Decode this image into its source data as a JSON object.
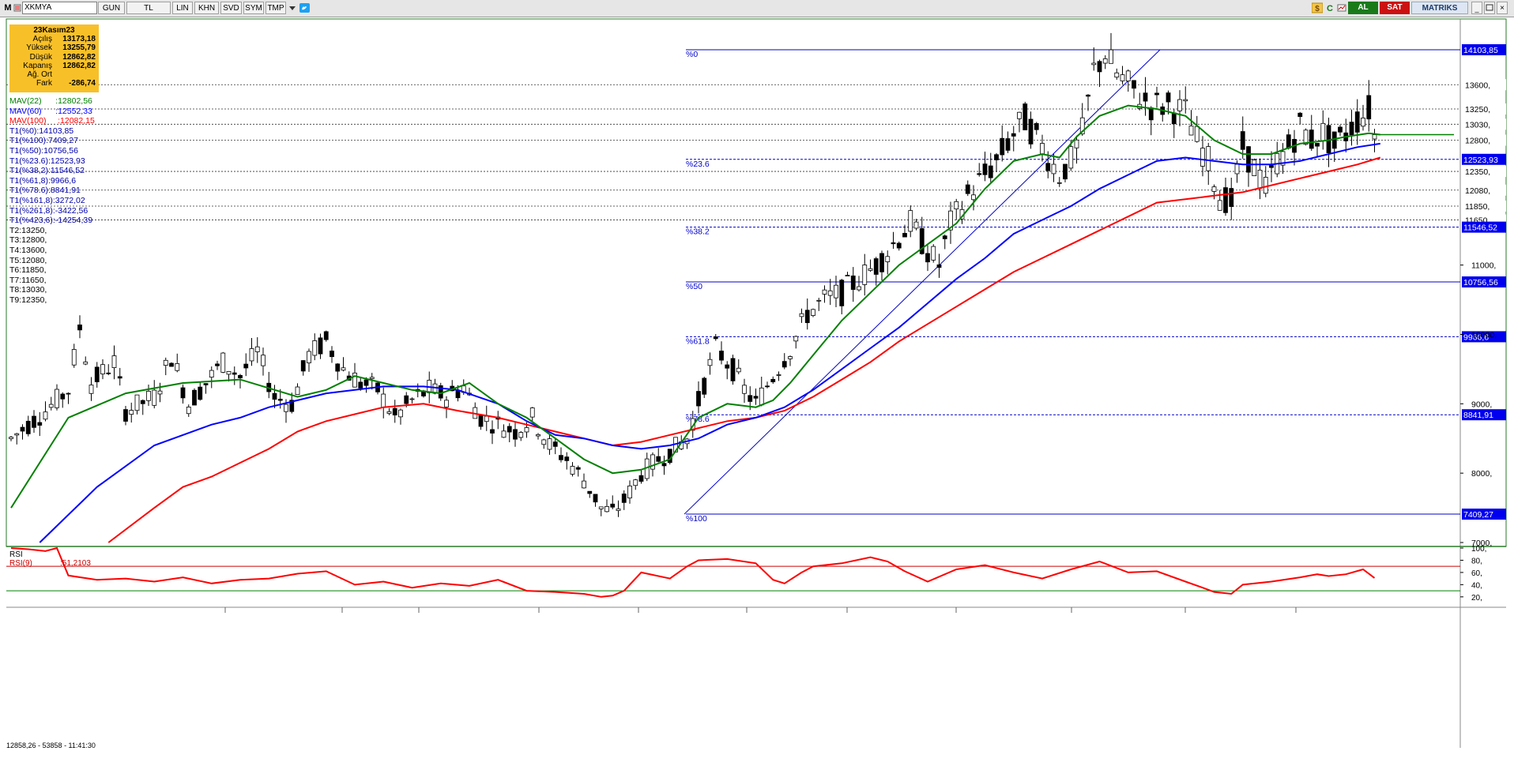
{
  "toolbar": {
    "m_label": "M",
    "symbol": "XKMYA",
    "buttons": [
      "GUN",
      "TL",
      "LIN",
      "KHN",
      "SVD",
      "SYM",
      "TMP"
    ],
    "al_label": "AL",
    "sat_label": "SAT",
    "brand": "MATRIKS"
  },
  "colors": {
    "mav22": "#008000",
    "mav60": "#0000ff",
    "mav100": "#ff0000",
    "fib": "#0000cc",
    "rsi": "#ff0000",
    "al_bg": "#1a7a1a",
    "sat_bg": "#cc1111",
    "info_bg": "#f8c028"
  },
  "info_box": {
    "date": "23Kasım23",
    "rows": [
      {
        "label": "Açılış",
        "value": "13173,18"
      },
      {
        "label": "Yüksek",
        "value": "13255,79"
      },
      {
        "label": "Düşük",
        "value": "12862,82"
      },
      {
        "label": "Kapanış",
        "value": "12862,82"
      },
      {
        "label": "Ağ. Ort",
        "value": ""
      },
      {
        "label": "Fark",
        "value": "-286,74"
      }
    ]
  },
  "indicators": {
    "mav22": {
      "label": "MAV(22)",
      "value": ":12802,56"
    },
    "mav60": {
      "label": "MAV(60)",
      "value": ":12552,33"
    },
    "mav100": {
      "label": "MAV(100)",
      "value": ":12082,15"
    }
  },
  "fib_lines": [
    "T1(%0):14103,85",
    "T1(%100):7409,27",
    "T1(%50):10756,56",
    "T1(%23.6):12523,93",
    "T1(%38,2):11546,52",
    "T1(%61,8):9966,6",
    "T1(%78.6):8841,91",
    "T1(%161,8):3272,02",
    "T1(%261,8):-3422,56",
    "T1(%423,6):-14254,39"
  ],
  "target_lines": [
    "T2:13250,",
    "T3:12800,",
    "T4:13600,",
    "T5:12080,",
    "T6:11850,",
    "T7:11650,",
    "T8:13030,",
    "T9:12350,"
  ],
  "status_text": "12858,26 - 53858 - 11:41:30",
  "chart_data": {
    "type": "candlestick",
    "y_axis_ticks": [
      7000,
      8000,
      9000,
      10000,
      11000
    ],
    "y_axis_tick_labels": [
      "7000,",
      "8000,",
      "9000,",
      "10000,",
      "11000,"
    ],
    "fib_levels": [
      {
        "label": "%0",
        "value": 14103.85,
        "axis_label": "14103,85"
      },
      {
        "label": "%23.6",
        "value": 12523.93,
        "axis_label": "12523,93"
      },
      {
        "label": "%38.2",
        "value": 11546.52,
        "axis_label": "11546,52"
      },
      {
        "label": "%50",
        "value": 10756.56,
        "axis_label": "10756,56"
      },
      {
        "label": "%61.8",
        "value": 9966.6,
        "axis_label": "9966,6"
      },
      {
        "label": "%78.6",
        "value": 8841.91,
        "axis_label": "8841,91"
      },
      {
        "label": "%100",
        "value": 7409.27,
        "axis_label": "7409,27"
      }
    ],
    "target_levels": [
      {
        "value": 13600,
        "axis_label": "13600,"
      },
      {
        "value": 13250,
        "axis_label": "13250,"
      },
      {
        "value": 13030,
        "axis_label": "13030,"
      },
      {
        "value": 12800,
        "axis_label": "12800,"
      },
      {
        "value": 12350,
        "axis_label": "12350,"
      },
      {
        "value": 12080,
        "axis_label": "12080,"
      },
      {
        "value": 11850,
        "axis_label": "11850,"
      },
      {
        "value": 11650,
        "axis_label": "11650,"
      }
    ],
    "price_path": [
      [
        0,
        8500
      ],
      [
        6,
        8900
      ],
      [
        10,
        9200
      ],
      [
        12,
        10100
      ],
      [
        14,
        9300
      ],
      [
        18,
        9600
      ],
      [
        20,
        8900
      ],
      [
        25,
        9100
      ],
      [
        28,
        9700
      ],
      [
        31,
        9000
      ],
      [
        34,
        9300
      ],
      [
        37,
        9600
      ],
      [
        40,
        9400
      ],
      [
        43,
        9750
      ],
      [
        46,
        9100
      ],
      [
        49,
        9000
      ],
      [
        52,
        9700
      ],
      [
        55,
        9900
      ],
      [
        58,
        9500
      ],
      [
        61,
        9300
      ],
      [
        64,
        9200
      ],
      [
        67,
        8800
      ],
      [
        70,
        9050
      ],
      [
        73,
        9200
      ],
      [
        76,
        9100
      ],
      [
        79,
        9250
      ],
      [
        82,
        8800
      ],
      [
        85,
        8700
      ],
      [
        88,
        8600
      ],
      [
        91,
        8800
      ],
      [
        94,
        8400
      ],
      [
        97,
        8200
      ],
      [
        100,
        7900
      ],
      [
        103,
        7500
      ],
      [
        105,
        7430
      ],
      [
        107,
        7600
      ],
      [
        110,
        8000
      ],
      [
        113,
        8200
      ],
      [
        115,
        8300
      ],
      [
        118,
        8500
      ],
      [
        121,
        9300
      ],
      [
        123,
        9800
      ],
      [
        126,
        9500
      ],
      [
        128,
        9200
      ],
      [
        130,
        9000
      ],
      [
        133,
        9400
      ],
      [
        136,
        9800
      ],
      [
        139,
        10300
      ],
      [
        142,
        10500
      ],
      [
        145,
        10600
      ],
      [
        148,
        10800
      ],
      [
        151,
        11000
      ],
      [
        154,
        11300
      ],
      [
        157,
        11600
      ],
      [
        160,
        11200
      ],
      [
        162,
        11000
      ],
      [
        164,
        11600
      ],
      [
        167,
        12000
      ],
      [
        170,
        12300
      ],
      [
        172,
        12500
      ],
      [
        175,
        12900
      ],
      [
        177,
        13100
      ],
      [
        180,
        12700
      ],
      [
        183,
        12300
      ],
      [
        185,
        12500
      ],
      [
        187,
        12900
      ],
      [
        189,
        13800
      ],
      [
        191,
        14050
      ],
      [
        193,
        13750
      ],
      [
        196,
        13500
      ],
      [
        199,
        13300
      ],
      [
        202,
        13300
      ],
      [
        205,
        13200
      ],
      [
        207,
        12800
      ],
      [
        209,
        12500
      ],
      [
        211,
        12000
      ],
      [
        213,
        11900
      ],
      [
        215,
        12700
      ],
      [
        217,
        12400
      ],
      [
        219,
        12100
      ],
      [
        221,
        12500
      ],
      [
        223,
        12700
      ],
      [
        225,
        13000
      ],
      [
        227,
        12800
      ],
      [
        229,
        12900
      ],
      [
        231,
        12700
      ],
      [
        233,
        12900
      ],
      [
        235,
        13100
      ],
      [
        237,
        13250
      ],
      [
        238,
        12862
      ]
    ],
    "mav22": [
      [
        0,
        7500
      ],
      [
        10,
        8800
      ],
      [
        20,
        9150
      ],
      [
        30,
        9300
      ],
      [
        40,
        9350
      ],
      [
        50,
        9100
      ],
      [
        55,
        9200
      ],
      [
        60,
        9400
      ],
      [
        65,
        9300
      ],
      [
        70,
        9200
      ],
      [
        75,
        9150
      ],
      [
        80,
        9300
      ],
      [
        85,
        9000
      ],
      [
        90,
        8800
      ],
      [
        95,
        8500
      ],
      [
        100,
        8200
      ],
      [
        105,
        8000
      ],
      [
        110,
        8050
      ],
      [
        115,
        8200
      ],
      [
        120,
        8800
      ],
      [
        125,
        9000
      ],
      [
        130,
        8950
      ],
      [
        133,
        9050
      ],
      [
        136,
        9300
      ],
      [
        140,
        9700
      ],
      [
        145,
        10200
      ],
      [
        150,
        10600
      ],
      [
        155,
        11000
      ],
      [
        160,
        11300
      ],
      [
        165,
        11600
      ],
      [
        170,
        12100
      ],
      [
        175,
        12500
      ],
      [
        180,
        12600
      ],
      [
        183,
        12550
      ],
      [
        186,
        12850
      ],
      [
        190,
        13150
      ],
      [
        195,
        13300
      ],
      [
        200,
        13250
      ],
      [
        205,
        13150
      ],
      [
        210,
        12800
      ],
      [
        215,
        12600
      ],
      [
        220,
        12600
      ],
      [
        225,
        12750
      ],
      [
        230,
        12800
      ],
      [
        233,
        12850
      ],
      [
        237,
        12900
      ],
      [
        239,
        12880
      ]
    ],
    "mav60": [
      [
        5,
        7000
      ],
      [
        15,
        7800
      ],
      [
        25,
        8400
      ],
      [
        35,
        8700
      ],
      [
        40,
        8800
      ],
      [
        45,
        8950
      ],
      [
        50,
        9050
      ],
      [
        55,
        9150
      ],
      [
        60,
        9200
      ],
      [
        65,
        9250
      ],
      [
        72,
        9250
      ],
      [
        78,
        9200
      ],
      [
        85,
        9000
      ],
      [
        90,
        8750
      ],
      [
        95,
        8550
      ],
      [
        100,
        8500
      ],
      [
        105,
        8400
      ],
      [
        110,
        8350
      ],
      [
        115,
        8400
      ],
      [
        120,
        8500
      ],
      [
        125,
        8700
      ],
      [
        130,
        8800
      ],
      [
        135,
        8950
      ],
      [
        140,
        9200
      ],
      [
        145,
        9500
      ],
      [
        150,
        9800
      ],
      [
        155,
        10100
      ],
      [
        160,
        10450
      ],
      [
        165,
        10800
      ],
      [
        170,
        11100
      ],
      [
        175,
        11450
      ],
      [
        180,
        11650
      ],
      [
        185,
        11850
      ],
      [
        190,
        12100
      ],
      [
        195,
        12300
      ],
      [
        200,
        12500
      ],
      [
        205,
        12550
      ],
      [
        210,
        12500
      ],
      [
        215,
        12450
      ],
      [
        220,
        12450
      ],
      [
        225,
        12500
      ],
      [
        230,
        12600
      ],
      [
        235,
        12700
      ],
      [
        239,
        12750
      ]
    ],
    "mav100": [
      [
        17,
        7000
      ],
      [
        25,
        7500
      ],
      [
        30,
        7800
      ],
      [
        35,
        7950
      ],
      [
        40,
        8150
      ],
      [
        45,
        8350
      ],
      [
        50,
        8600
      ],
      [
        55,
        8750
      ],
      [
        60,
        8850
      ],
      [
        65,
        8950
      ],
      [
        72,
        9000
      ],
      [
        78,
        8900
      ],
      [
        85,
        8800
      ],
      [
        90,
        8700
      ],
      [
        95,
        8600
      ],
      [
        100,
        8500
      ],
      [
        105,
        8400
      ],
      [
        110,
        8450
      ],
      [
        115,
        8550
      ],
      [
        120,
        8650
      ],
      [
        125,
        8750
      ],
      [
        130,
        8800
      ],
      [
        135,
        8900
      ],
      [
        140,
        9100
      ],
      [
        145,
        9350
      ],
      [
        150,
        9600
      ],
      [
        155,
        9900
      ],
      [
        160,
        10150
      ],
      [
        165,
        10400
      ],
      [
        170,
        10650
      ],
      [
        175,
        10900
      ],
      [
        180,
        11100
      ],
      [
        185,
        11300
      ],
      [
        190,
        11500
      ],
      [
        195,
        11700
      ],
      [
        200,
        11900
      ],
      [
        205,
        11950
      ],
      [
        210,
        12000
      ],
      [
        215,
        12050
      ],
      [
        220,
        12150
      ],
      [
        225,
        12250
      ],
      [
        230,
        12350
      ],
      [
        235,
        12450
      ],
      [
        239,
        12550
      ]
    ],
    "rsi": {
      "label": "RSI",
      "series_label": "RSI(9)",
      "value": ":51,2103",
      "ticks": [
        20,
        40,
        60,
        80,
        100
      ],
      "tick_labels": [
        "20,",
        "40,",
        "60,",
        "80,",
        "100,"
      ],
      "upper_band": 70,
      "lower_band": 30,
      "path": [
        [
          0,
          100
        ],
        [
          3,
          98
        ],
        [
          6,
          95
        ],
        [
          8,
          100
        ],
        [
          10,
          55
        ],
        [
          15,
          48
        ],
        [
          20,
          50
        ],
        [
          25,
          45
        ],
        [
          30,
          52
        ],
        [
          35,
          42
        ],
        [
          40,
          48
        ],
        [
          45,
          50
        ],
        [
          50,
          58
        ],
        [
          55,
          62
        ],
        [
          60,
          40
        ],
        [
          65,
          45
        ],
        [
          70,
          35
        ],
        [
          75,
          42
        ],
        [
          80,
          38
        ],
        [
          85,
          48
        ],
        [
          90,
          30
        ],
        [
          95,
          28
        ],
        [
          100,
          25
        ],
        [
          103,
          20
        ],
        [
          105,
          22
        ],
        [
          107,
          30
        ],
        [
          110,
          60
        ],
        [
          115,
          50
        ],
        [
          118,
          70
        ],
        [
          120,
          80
        ],
        [
          125,
          82
        ],
        [
          130,
          75
        ],
        [
          133,
          48
        ],
        [
          135,
          42
        ],
        [
          138,
          60
        ],
        [
          140,
          70
        ],
        [
          145,
          75
        ],
        [
          150,
          85
        ],
        [
          153,
          78
        ],
        [
          156,
          62
        ],
        [
          160,
          45
        ],
        [
          165,
          65
        ],
        [
          170,
          72
        ],
        [
          175,
          60
        ],
        [
          180,
          50
        ],
        [
          185,
          65
        ],
        [
          190,
          78
        ],
        [
          195,
          60
        ],
        [
          200,
          62
        ],
        [
          205,
          45
        ],
        [
          208,
          35
        ],
        [
          210,
          28
        ],
        [
          213,
          25
        ],
        [
          215,
          40
        ],
        [
          220,
          45
        ],
        [
          225,
          52
        ],
        [
          228,
          57
        ],
        [
          230,
          54
        ],
        [
          233,
          57
        ],
        [
          236,
          65
        ],
        [
          238,
          51
        ]
      ]
    },
    "x_count": 240
  }
}
